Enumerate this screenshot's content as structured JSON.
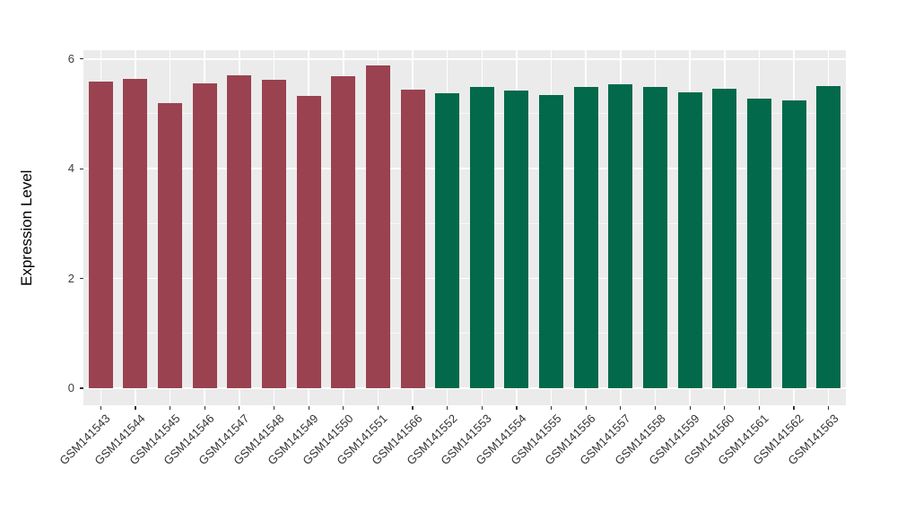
{
  "chart_data": {
    "type": "bar",
    "title": "",
    "xlabel": "",
    "ylabel": "Expression Level",
    "categories": [
      "GSM141543",
      "GSM141544",
      "GSM141545",
      "GSM141546",
      "GSM141547",
      "GSM141548",
      "GSM141549",
      "GSM141550",
      "GSM141551",
      "GSM141566",
      "GSM141552",
      "GSM141553",
      "GSM141554",
      "GSM141555",
      "GSM141556",
      "GSM141557",
      "GSM141558",
      "GSM141559",
      "GSM141560",
      "GSM141561",
      "GSM141562",
      "GSM141563"
    ],
    "values": [
      5.58,
      5.64,
      5.2,
      5.55,
      5.71,
      5.62,
      5.33,
      5.69,
      5.89,
      5.44,
      5.38,
      5.49,
      5.43,
      5.35,
      5.49,
      5.54,
      5.49,
      5.4,
      5.46,
      5.28,
      5.25,
      5.51
    ],
    "bar_colors": [
      "#9A4250",
      "#9A4250",
      "#9A4250",
      "#9A4250",
      "#9A4250",
      "#9A4250",
      "#9A4250",
      "#9A4250",
      "#9A4250",
      "#9A4250",
      "#02694B",
      "#02694B",
      "#02694B",
      "#02694B",
      "#02694B",
      "#02694B",
      "#02694B",
      "#02694B",
      "#02694B",
      "#02694B",
      "#02694B",
      "#02694B"
    ],
    "group_colors": {
      "maroon": "#9A4250",
      "green": "#02694B"
    },
    "yticks": [
      0,
      2,
      4,
      6
    ],
    "ytick_labels": [
      "0",
      "2",
      "4",
      "6"
    ],
    "yticks_minor": [
      1,
      3,
      5
    ],
    "ylim": [
      -0.31,
      6.16
    ],
    "grid": true,
    "legend": "none",
    "panel_bg": "#EBEBEB",
    "gridline_color": "#FFFFFF",
    "axis_text_color": "#404040",
    "tick_color": "#333333"
  }
}
